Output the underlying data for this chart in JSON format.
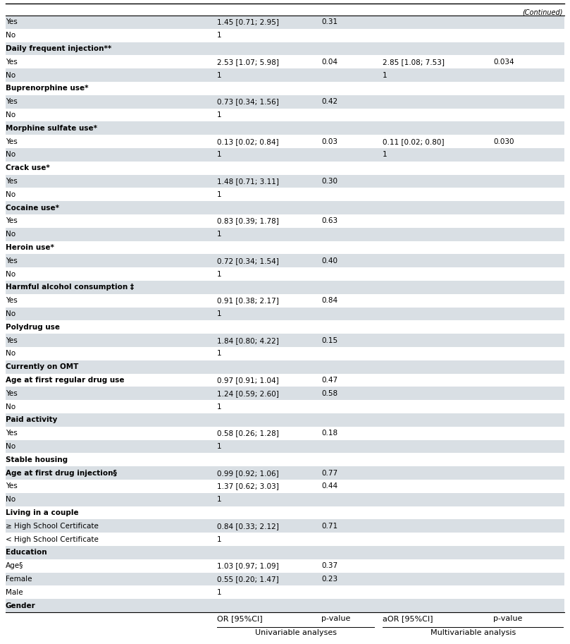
{
  "rows": [
    {
      "label": "Gender",
      "bold": true,
      "shaded": true,
      "or": "",
      "pval": "",
      "aor": "",
      "apval": ""
    },
    {
      "label": "Male",
      "bold": false,
      "shaded": false,
      "or": "1",
      "pval": "",
      "aor": "",
      "apval": ""
    },
    {
      "label": "Female",
      "bold": false,
      "shaded": true,
      "or": "0.55 [0.20; 1.47]",
      "pval": "0.23",
      "aor": "",
      "apval": ""
    },
    {
      "label": "Age§",
      "bold": false,
      "shaded": false,
      "or": "1.03 [0.97; 1.09]",
      "pval": "0.37",
      "aor": "",
      "apval": ""
    },
    {
      "label": "Education",
      "bold": true,
      "shaded": true,
      "or": "",
      "pval": "",
      "aor": "",
      "apval": ""
    },
    {
      "label": "< High School Certificate",
      "bold": false,
      "shaded": false,
      "or": "1",
      "pval": "",
      "aor": "",
      "apval": ""
    },
    {
      "label": "≥ High School Certificate",
      "bold": false,
      "shaded": true,
      "or": "0.84 [0.33; 2.12]",
      "pval": "0.71",
      "aor": "",
      "apval": ""
    },
    {
      "label": "Living in a couple",
      "bold": true,
      "shaded": false,
      "or": "",
      "pval": "",
      "aor": "",
      "apval": ""
    },
    {
      "label": "No",
      "bold": false,
      "shaded": true,
      "or": "1",
      "pval": "",
      "aor": "",
      "apval": ""
    },
    {
      "label": "Yes",
      "bold": false,
      "shaded": false,
      "or": "1.37 [0.62; 3.03]",
      "pval": "0.44",
      "aor": "",
      "apval": ""
    },
    {
      "label": "Age at first drug injection§",
      "bold": true,
      "shaded": true,
      "or": "0.99 [0.92; 1.06]",
      "pval": "0.77",
      "aor": "",
      "apval": ""
    },
    {
      "label": "Stable housing",
      "bold": true,
      "shaded": false,
      "or": "",
      "pval": "",
      "aor": "",
      "apval": ""
    },
    {
      "label": "No",
      "bold": false,
      "shaded": true,
      "or": "1",
      "pval": "",
      "aor": "",
      "apval": ""
    },
    {
      "label": "Yes",
      "bold": false,
      "shaded": false,
      "or": "0.58 [0.26; 1.28]",
      "pval": "0.18",
      "aor": "",
      "apval": ""
    },
    {
      "label": "Paid activity",
      "bold": true,
      "shaded": true,
      "or": "",
      "pval": "",
      "aor": "",
      "apval": ""
    },
    {
      "label": "No",
      "bold": false,
      "shaded": false,
      "or": "1",
      "pval": "",
      "aor": "",
      "apval": ""
    },
    {
      "label": "Yes",
      "bold": false,
      "shaded": true,
      "or": "1.24 [0.59; 2.60]",
      "pval": "0.58",
      "aor": "",
      "apval": ""
    },
    {
      "label": "Age at first regular drug use",
      "bold": true,
      "shaded": false,
      "or": "0.97 [0.91; 1.04]",
      "pval": "0.47",
      "aor": "",
      "apval": ""
    },
    {
      "label": "Currently on OMT",
      "bold": true,
      "shaded": true,
      "or": "",
      "pval": "",
      "aor": "",
      "apval": ""
    },
    {
      "label": "No",
      "bold": false,
      "shaded": false,
      "or": "1",
      "pval": "",
      "aor": "",
      "apval": ""
    },
    {
      "label": "Yes",
      "bold": false,
      "shaded": true,
      "or": "1.84 [0.80; 4.22]",
      "pval": "0.15",
      "aor": "",
      "apval": ""
    },
    {
      "label": "Polydrug use",
      "bold": true,
      "shaded": false,
      "or": "",
      "pval": "",
      "aor": "",
      "apval": ""
    },
    {
      "label": "No",
      "bold": false,
      "shaded": true,
      "or": "1",
      "pval": "",
      "aor": "",
      "apval": ""
    },
    {
      "label": "Yes",
      "bold": false,
      "shaded": false,
      "or": "0.91 [0.38; 2.17]",
      "pval": "0.84",
      "aor": "",
      "apval": ""
    },
    {
      "label": "Harmful alcohol consumption ‡",
      "bold": true,
      "shaded": true,
      "or": "",
      "pval": "",
      "aor": "",
      "apval": ""
    },
    {
      "label": "No",
      "bold": false,
      "shaded": false,
      "or": "1",
      "pval": "",
      "aor": "",
      "apval": ""
    },
    {
      "label": "Yes",
      "bold": false,
      "shaded": true,
      "or": "0.72 [0.34; 1.54]",
      "pval": "0.40",
      "aor": "",
      "apval": ""
    },
    {
      "label": "Heroin use*",
      "bold": true,
      "shaded": false,
      "or": "",
      "pval": "",
      "aor": "",
      "apval": ""
    },
    {
      "label": "No",
      "bold": false,
      "shaded": true,
      "or": "1",
      "pval": "",
      "aor": "",
      "apval": ""
    },
    {
      "label": "Yes",
      "bold": false,
      "shaded": false,
      "or": "0.83 [0.39; 1.78]",
      "pval": "0.63",
      "aor": "",
      "apval": ""
    },
    {
      "label": "Cocaine use*",
      "bold": true,
      "shaded": true,
      "or": "",
      "pval": "",
      "aor": "",
      "apval": ""
    },
    {
      "label": "No",
      "bold": false,
      "shaded": false,
      "or": "1",
      "pval": "",
      "aor": "",
      "apval": ""
    },
    {
      "label": "Yes",
      "bold": false,
      "shaded": true,
      "or": "1.48 [0.71; 3.11]",
      "pval": "0.30",
      "aor": "",
      "apval": ""
    },
    {
      "label": "Crack use*",
      "bold": true,
      "shaded": false,
      "or": "",
      "pval": "",
      "aor": "",
      "apval": ""
    },
    {
      "label": "No",
      "bold": false,
      "shaded": true,
      "or": "1",
      "pval": "",
      "aor": "1",
      "apval": ""
    },
    {
      "label": "Yes",
      "bold": false,
      "shaded": false,
      "or": "0.13 [0.02; 0.84]",
      "pval": "0.03",
      "aor": "0.11 [0.02; 0.80]",
      "apval": "0.030"
    },
    {
      "label": "Morphine sulfate use*",
      "bold": true,
      "shaded": true,
      "or": "",
      "pval": "",
      "aor": "",
      "apval": ""
    },
    {
      "label": "No",
      "bold": false,
      "shaded": false,
      "or": "1",
      "pval": "",
      "aor": "",
      "apval": ""
    },
    {
      "label": "Yes",
      "bold": false,
      "shaded": true,
      "or": "0.73 [0.34; 1.56]",
      "pval": "0.42",
      "aor": "",
      "apval": ""
    },
    {
      "label": "Buprenorphine use*",
      "bold": true,
      "shaded": false,
      "or": "",
      "pval": "",
      "aor": "",
      "apval": ""
    },
    {
      "label": "No",
      "bold": false,
      "shaded": true,
      "or": "1",
      "pval": "",
      "aor": "1",
      "apval": ""
    },
    {
      "label": "Yes",
      "bold": false,
      "shaded": false,
      "or": "2.53 [1.07; 5.98]",
      "pval": "0.04",
      "aor": "2.85 [1.08; 7.53]",
      "apval": "0.034"
    },
    {
      "label": "Daily frequent injection**",
      "bold": true,
      "shaded": true,
      "or": "",
      "pval": "",
      "aor": "",
      "apval": ""
    },
    {
      "label": "No",
      "bold": false,
      "shaded": false,
      "or": "1",
      "pval": "",
      "aor": "",
      "apval": ""
    },
    {
      "label": "Yes",
      "bold": false,
      "shaded": true,
      "or": "1.45 [0.71; 2.95]",
      "pval": "0.31",
      "aor": "",
      "apval": ""
    }
  ],
  "footer": "(Continued)",
  "shaded_color": "#d9dfe4",
  "font_size": 7.5,
  "header_font_size": 8.0
}
